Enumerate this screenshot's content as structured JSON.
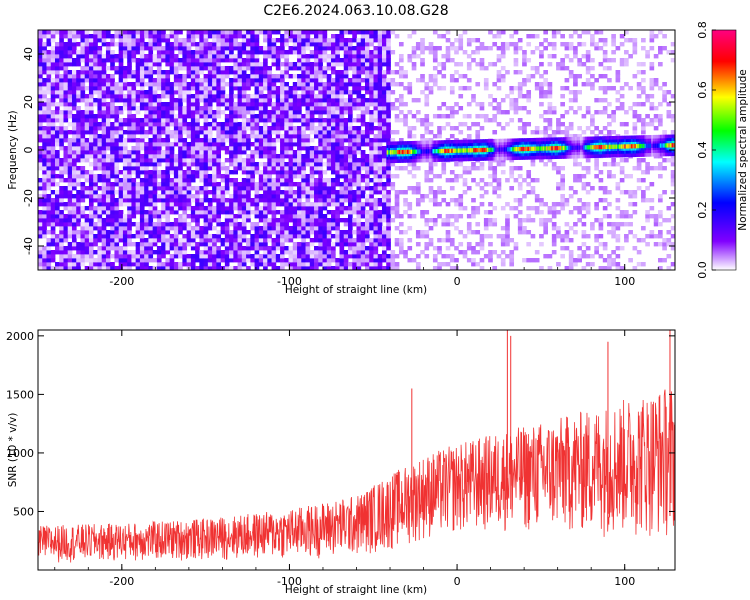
{
  "title": "C2E6.2024.063.10.08.G28",
  "chart_data": [
    {
      "type": "heatmap",
      "xlabel": "Height of straight line (km)",
      "ylabel": "Frequency (Hz)",
      "xlim": [
        -250,
        130
      ],
      "ylim": [
        -50,
        50
      ],
      "xticks": [
        -200,
        -100,
        0,
        100
      ],
      "yticks": [
        -40,
        -20,
        0,
        20,
        40
      ],
      "xtick_labels": [
        "-200",
        "-100",
        "0",
        "100"
      ],
      "ytick_labels": [
        "-40",
        "-20",
        "0",
        "20",
        "40"
      ],
      "colorbar": {
        "label": "Normalized spectral amplitude",
        "range": [
          0,
          0.8
        ],
        "ticks": [
          "0.0",
          "0.2",
          "0.4",
          "0.6",
          "0.8"
        ],
        "colormap": [
          "#ffffff",
          "#8000ff",
          "#0000ff",
          "#00ffff",
          "#00ff00",
          "#ffff00",
          "#ff0000",
          "#ff0080"
        ]
      },
      "ridge": {
        "x_start": -42,
        "x_end": 130,
        "frequency_at_start": -1,
        "frequency_at_end": 2,
        "peak_amplitude": 0.75
      },
      "noise_regions": [
        {
          "x_from": -250,
          "x_to": -42,
          "amplitude": 0.12
        },
        {
          "x_from": -42,
          "x_to": 130,
          "amplitude": 0.04
        }
      ]
    },
    {
      "type": "line",
      "xlabel": "Height of straight line (km)",
      "ylabel": "SNR (10 * v/v)",
      "xlim": [
        -250,
        130
      ],
      "ylim": [
        0,
        2050
      ],
      "xticks": [
        -200,
        -100,
        0,
        100
      ],
      "yticks": [
        500,
        1000,
        1500,
        2000
      ],
      "xtick_labels": [
        "-200",
        "-100",
        "0",
        "100"
      ],
      "ytick_labels": [
        "500",
        "1000",
        "1500",
        "2000"
      ],
      "color": "#f03232",
      "envelope": {
        "x": [
          -250,
          -200,
          -150,
          -100,
          -60,
          -40,
          -20,
          0,
          30,
          60,
          90,
          130
        ],
        "upper": [
          380,
          400,
          440,
          520,
          640,
          820,
          980,
          1080,
          1200,
          1300,
          1420,
          1600
        ],
        "lower": [
          60,
          70,
          80,
          90,
          110,
          160,
          250,
          300,
          320,
          300,
          280,
          260
        ]
      },
      "spikes": [
        {
          "x": -27,
          "y": 1550
        },
        {
          "x": 30,
          "y": 2050
        },
        {
          "x": 32,
          "y": 2000
        },
        {
          "x": 90,
          "y": 1950
        },
        {
          "x": 127,
          "y": 2050
        }
      ]
    }
  ]
}
